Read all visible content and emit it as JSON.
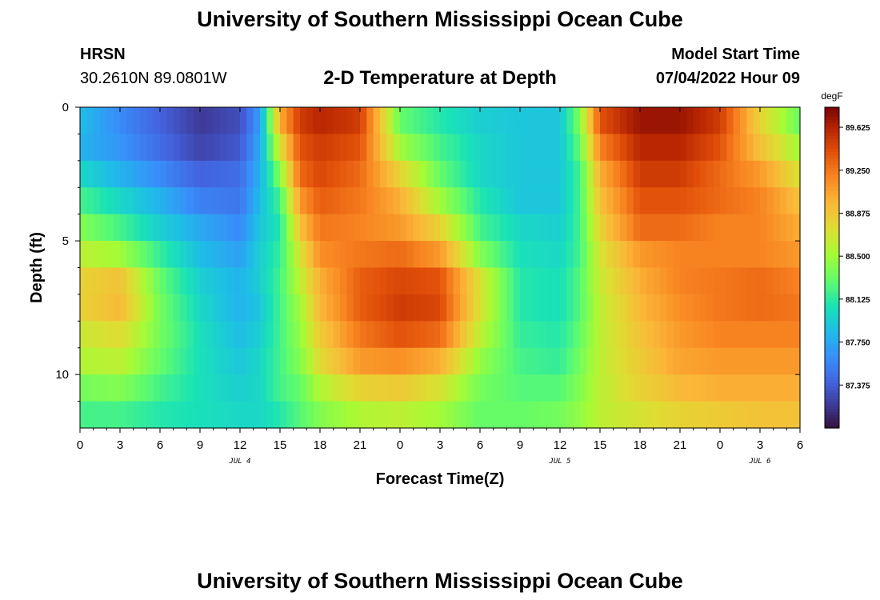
{
  "header": {
    "title": "University of Southern Mississippi Ocean Cube",
    "station": "HRSN",
    "coords": "30.2610N  89.0801W",
    "subtitle": "2-D Temperature at Depth",
    "model_label": "Model Start Time",
    "model_time": "07/04/2022 Hour 09"
  },
  "footer": {
    "title": "University of Southern Mississippi Ocean Cube"
  },
  "chart_data": {
    "type": "heatmap",
    "title": "2-D Temperature at Depth",
    "xlabel": "Forecast Time(Z)",
    "ylabel": "Depth (ft)",
    "x_unit": "hours since 07/04/2022 00Z",
    "xlim": [
      0,
      54
    ],
    "ylim": [
      0,
      12
    ],
    "x_ticks": [
      0,
      3,
      6,
      9,
      12,
      15,
      18,
      21,
      24,
      27,
      30,
      33,
      36,
      39,
      42,
      45,
      48,
      51,
      54
    ],
    "x_tick_labels": [
      "0",
      "3",
      "6",
      "9",
      "12",
      "15",
      "18",
      "21",
      "0",
      "3",
      "6",
      "9",
      "12",
      "15",
      "18",
      "21",
      "0",
      "3",
      "6"
    ],
    "date_labels": [
      {
        "x": 12,
        "label": "JUL 4"
      },
      {
        "x": 36,
        "label": "JUL 5"
      },
      {
        "x": 51,
        "label": "JUL 6"
      }
    ],
    "y_ticks": [
      0,
      5,
      10
    ],
    "y_tick_labels": [
      "0",
      "5",
      "10"
    ],
    "colorbar": {
      "unit": "degF",
      "range": [
        87.0,
        89.8
      ],
      "ticks": [
        87.375,
        87.75,
        88.125,
        88.5,
        88.875,
        89.25,
        89.625
      ],
      "tick_labels": [
        "87.375",
        "87.750",
        "88.125",
        "88.500",
        "88.875",
        "89.250",
        "89.625"
      ]
    },
    "depth_levels": [
      0.5,
      1.5,
      2.5,
      3.5,
      4.5,
      5.5,
      6.5,
      7.5,
      8.5,
      9.5,
      10.5,
      11.5
    ],
    "time_nodes": [
      0,
      3,
      6,
      9,
      12,
      13.5,
      15,
      16.5,
      18,
      21,
      24,
      27,
      30,
      33,
      36,
      37.5,
      39,
      42,
      45,
      48,
      51,
      54
    ],
    "temperature_degF": [
      [
        87.85,
        87.6,
        87.4,
        87.2,
        87.3,
        87.7,
        89.0,
        89.5,
        89.6,
        89.5,
        88.3,
        88.1,
        87.95,
        87.9,
        87.9,
        88.4,
        89.4,
        89.7,
        89.7,
        89.5,
        88.8,
        88.3
      ],
      [
        87.8,
        87.65,
        87.45,
        87.25,
        87.35,
        87.75,
        88.7,
        89.4,
        89.5,
        89.4,
        88.5,
        88.2,
        88.0,
        87.9,
        87.9,
        88.3,
        89.2,
        89.6,
        89.6,
        89.4,
        88.9,
        88.5
      ],
      [
        88.0,
        87.8,
        87.6,
        87.4,
        87.45,
        87.8,
        88.4,
        89.3,
        89.45,
        89.3,
        88.8,
        88.3,
        88.0,
        87.9,
        87.9,
        88.2,
        89.0,
        89.5,
        89.5,
        89.3,
        89.1,
        88.7
      ],
      [
        88.2,
        88.0,
        87.8,
        87.55,
        87.5,
        87.85,
        88.2,
        89.1,
        89.35,
        89.25,
        89.0,
        88.5,
        88.1,
        87.9,
        87.9,
        88.2,
        88.9,
        89.4,
        89.4,
        89.3,
        89.2,
        88.9
      ],
      [
        88.4,
        88.2,
        87.95,
        87.75,
        87.6,
        87.9,
        88.1,
        88.9,
        89.25,
        89.2,
        89.1,
        88.8,
        88.2,
        88.0,
        87.95,
        88.2,
        88.8,
        89.3,
        89.3,
        89.2,
        89.2,
        89.0
      ],
      [
        88.6,
        88.5,
        88.15,
        87.85,
        87.7,
        87.95,
        88.15,
        88.7,
        89.15,
        89.25,
        89.3,
        89.1,
        88.4,
        88.05,
        88.0,
        88.2,
        88.7,
        89.1,
        89.2,
        89.2,
        89.2,
        89.1
      ],
      [
        88.8,
        88.9,
        88.3,
        87.95,
        87.8,
        87.95,
        88.2,
        88.6,
        89.0,
        89.35,
        89.45,
        89.4,
        88.7,
        88.1,
        88.05,
        88.25,
        88.65,
        89.0,
        89.2,
        89.25,
        89.3,
        89.2
      ],
      [
        88.8,
        88.95,
        88.35,
        88.0,
        87.8,
        87.9,
        88.2,
        88.5,
        88.95,
        89.35,
        89.5,
        89.45,
        88.7,
        88.1,
        88.05,
        88.25,
        88.6,
        88.95,
        89.15,
        89.25,
        89.3,
        89.25
      ],
      [
        88.65,
        88.75,
        88.35,
        88.05,
        87.85,
        87.95,
        88.2,
        88.45,
        88.85,
        89.25,
        89.4,
        89.3,
        88.6,
        88.15,
        88.1,
        88.3,
        88.6,
        88.9,
        89.1,
        89.2,
        89.2,
        89.2
      ],
      [
        88.55,
        88.6,
        88.3,
        88.05,
        87.9,
        88.0,
        88.2,
        88.4,
        88.75,
        89.1,
        89.15,
        89.0,
        88.45,
        88.2,
        88.15,
        88.35,
        88.6,
        88.85,
        89.05,
        89.1,
        89.1,
        89.1
      ],
      [
        88.35,
        88.4,
        88.2,
        88.05,
        87.95,
        88.0,
        88.2,
        88.3,
        88.55,
        88.8,
        88.85,
        88.7,
        88.35,
        88.25,
        88.25,
        88.4,
        88.6,
        88.8,
        88.95,
        89.0,
        89.0,
        89.0
      ],
      [
        88.2,
        88.2,
        88.1,
        88.05,
        88.0,
        88.0,
        88.1,
        88.25,
        88.4,
        88.55,
        88.6,
        88.5,
        88.3,
        88.3,
        88.35,
        88.45,
        88.6,
        88.7,
        88.8,
        88.85,
        88.9,
        88.9
      ]
    ]
  }
}
